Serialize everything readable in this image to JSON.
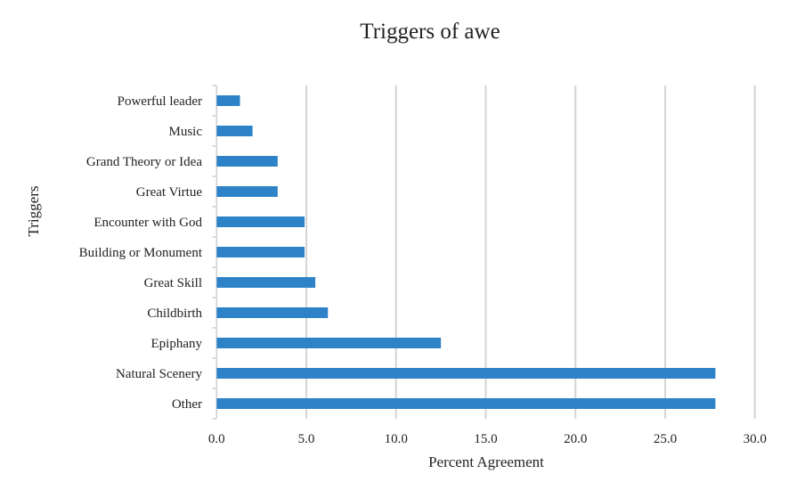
{
  "chart_data": {
    "type": "bar",
    "orientation": "horizontal",
    "title": "Triggers of awe",
    "xlabel": "Percent Agreement",
    "ylabel": "Triggers",
    "categories": [
      "Powerful leader",
      "Music",
      "Grand Theory or Idea",
      "Great Virtue",
      "Encounter with God",
      "Building or Monument",
      "Great Skill",
      "Childbirth",
      "Epiphany",
      "Natural Scenery",
      "Other"
    ],
    "values": [
      1.3,
      2.0,
      3.4,
      3.4,
      4.9,
      4.9,
      5.5,
      6.2,
      12.5,
      27.8,
      27.8
    ],
    "xlim": [
      0,
      30
    ],
    "xticks": [
      "0.0",
      "5.0",
      "10.0",
      "15.0",
      "20.0",
      "25.0",
      "30.0"
    ],
    "grid": "vertical",
    "bar_color": "#2e82c8",
    "grid_color": "#d4d4d4"
  }
}
